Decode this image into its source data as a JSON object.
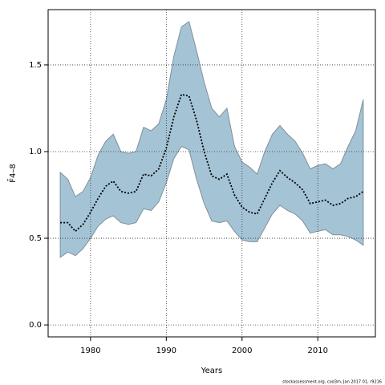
{
  "chart_data": {
    "type": "line",
    "xlabel": "Years",
    "ylabel": "F̄4–8",
    "footer": "stockassessment.org, cod3m, Jan 2017 01, r9216",
    "x": [
      1976,
      1977,
      1978,
      1979,
      1980,
      1981,
      1982,
      1983,
      1984,
      1985,
      1986,
      1987,
      1988,
      1989,
      1990,
      1991,
      1992,
      1993,
      1994,
      1995,
      1996,
      1997,
      1998,
      1999,
      2000,
      2001,
      2002,
      2003,
      2004,
      2005,
      2006,
      2007,
      2008,
      2009,
      2010,
      2011,
      2012,
      2013,
      2014,
      2015,
      2016
    ],
    "values": [
      0.59,
      0.59,
      0.54,
      0.58,
      0.65,
      0.73,
      0.8,
      0.83,
      0.77,
      0.76,
      0.77,
      0.87,
      0.86,
      0.9,
      1.02,
      1.2,
      1.33,
      1.32,
      1.18,
      1.0,
      0.86,
      0.84,
      0.87,
      0.75,
      0.68,
      0.65,
      0.64,
      0.73,
      0.82,
      0.89,
      0.85,
      0.82,
      0.78,
      0.7,
      0.71,
      0.72,
      0.69,
      0.7,
      0.73,
      0.74,
      0.77
    ],
    "upper": [
      0.88,
      0.84,
      0.74,
      0.77,
      0.85,
      0.98,
      1.06,
      1.1,
      1.0,
      0.99,
      1.0,
      1.14,
      1.12,
      1.16,
      1.3,
      1.55,
      1.72,
      1.75,
      1.58,
      1.4,
      1.25,
      1.2,
      1.25,
      1.03,
      0.94,
      0.91,
      0.87,
      1.0,
      1.1,
      1.15,
      1.1,
      1.06,
      0.99,
      0.9,
      0.92,
      0.93,
      0.9,
      0.93,
      1.03,
      1.12,
      1.3
    ],
    "lower": [
      0.39,
      0.42,
      0.4,
      0.44,
      0.5,
      0.57,
      0.61,
      0.63,
      0.59,
      0.58,
      0.59,
      0.67,
      0.66,
      0.71,
      0.82,
      0.96,
      1.03,
      1.01,
      0.84,
      0.7,
      0.6,
      0.59,
      0.6,
      0.54,
      0.49,
      0.48,
      0.48,
      0.56,
      0.64,
      0.69,
      0.66,
      0.64,
      0.6,
      0.53,
      0.54,
      0.55,
      0.52,
      0.52,
      0.51,
      0.49,
      0.46
    ],
    "color": "#000000",
    "band_color": "#a4c4d6",
    "xlim": [
      1974.4,
      2017.6
    ],
    "ylim": [
      -0.069,
      1.819
    ],
    "xticks": [
      1980,
      1990,
      2000,
      2010
    ],
    "yticks": [
      {
        "value": 0,
        "label": "0.0"
      },
      {
        "value": 0.5,
        "label": "0.5"
      },
      {
        "value": 1,
        "label": "1.0"
      },
      {
        "value": 1.5,
        "label": "1.5"
      }
    ],
    "grid": true
  }
}
